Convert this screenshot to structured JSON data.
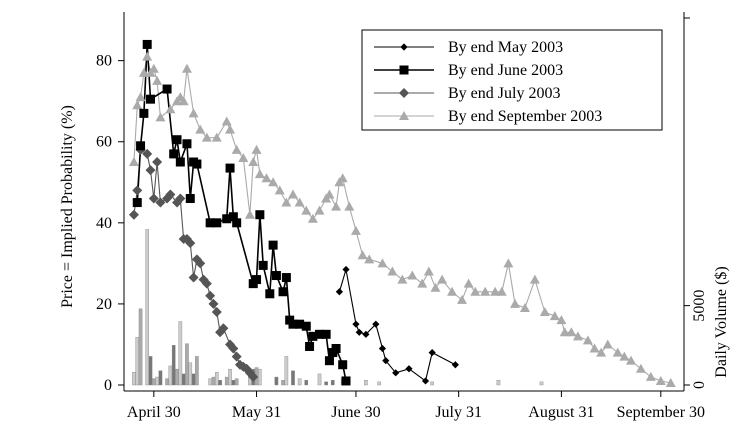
{
  "chart_data": {
    "type": "line",
    "ylabel": "Price = Implied Probability (%)",
    "y2label": "Daily Volume ($)",
    "x_ticks": [
      {
        "date": "2003-04-30",
        "label": "April 30"
      },
      {
        "date": "2003-05-31",
        "label": "May 31"
      },
      {
        "date": "2003-06-30",
        "label": "June 30"
      },
      {
        "date": "2003-07-31",
        "label": "July 31"
      },
      {
        "date": "2003-08-31",
        "label": "August 31"
      },
      {
        "date": "2003-09-30",
        "label": "September 30"
      }
    ],
    "y_ticks": [
      "0",
      "20",
      "40",
      "60",
      "80"
    ],
    "y2_ticks": [
      "0",
      "5000"
    ],
    "ylim": [
      0,
      92
    ],
    "y2lim": [
      0,
      23500
    ],
    "xlim": [
      "2003-04-21",
      "2003-10-07"
    ],
    "legend_position": "top-right",
    "series": [
      {
        "name": "By end May 2003",
        "marker": "diamond-small",
        "color": "#000000",
        "points": [
          [
            "2003-06-25",
            23
          ],
          [
            "2003-06-27",
            28.5
          ],
          [
            "2003-06-30",
            15
          ],
          [
            "2003-07-01",
            13
          ],
          [
            "2003-07-03",
            12.5
          ],
          [
            "2003-07-06",
            15
          ],
          [
            "2003-07-08",
            9
          ],
          [
            "2003-07-09",
            6
          ],
          [
            "2003-07-12",
            3
          ],
          [
            "2003-07-16",
            4
          ],
          [
            "2003-07-21",
            1
          ],
          [
            "2003-07-23",
            8
          ],
          [
            "2003-07-30",
            5
          ]
        ]
      },
      {
        "name": "By end June 2003",
        "marker": "square",
        "color": "#000000",
        "points": [
          [
            "2003-04-25",
            45
          ],
          [
            "2003-04-26",
            59
          ],
          [
            "2003-04-27",
            67
          ],
          [
            "2003-04-28",
            84
          ],
          [
            "2003-04-29",
            70.5
          ],
          [
            "2003-05-04",
            73
          ],
          [
            "2003-05-06",
            57
          ],
          [
            "2003-05-07",
            60.5
          ],
          [
            "2003-05-08",
            55
          ],
          [
            "2003-05-10",
            59.5
          ],
          [
            "2003-05-11",
            46
          ],
          [
            "2003-05-12",
            55
          ],
          [
            "2003-05-13",
            54.5
          ],
          [
            "2003-05-17",
            40
          ],
          [
            "2003-05-19",
            40
          ],
          [
            "2003-05-22",
            41
          ],
          [
            "2003-05-23",
            53.5
          ],
          [
            "2003-05-24",
            41.5
          ],
          [
            "2003-05-25",
            40
          ],
          [
            "2003-05-30",
            25
          ],
          [
            "2003-05-31",
            26
          ],
          [
            "2003-06-01",
            42
          ],
          [
            "2003-06-02",
            29.5
          ],
          [
            "2003-06-04",
            22.5
          ],
          [
            "2003-06-05",
            34.5
          ],
          [
            "2003-06-06",
            27
          ],
          [
            "2003-06-08",
            23
          ],
          [
            "2003-06-09",
            26.5
          ],
          [
            "2003-06-10",
            16
          ],
          [
            "2003-06-11",
            15
          ],
          [
            "2003-06-13",
            15
          ],
          [
            "2003-06-15",
            14.5
          ],
          [
            "2003-06-16",
            9.5
          ],
          [
            "2003-06-17",
            12
          ],
          [
            "2003-06-19",
            12.5
          ],
          [
            "2003-06-21",
            12.5
          ],
          [
            "2003-06-22",
            6
          ],
          [
            "2003-06-23",
            8
          ],
          [
            "2003-06-24",
            9
          ],
          [
            "2003-06-26",
            5
          ],
          [
            "2003-06-27",
            1
          ]
        ]
      },
      {
        "name": "By end July 2003",
        "marker": "diamond",
        "color": "#555555",
        "points": [
          [
            "2003-04-24",
            42
          ],
          [
            "2003-04-25",
            48
          ],
          [
            "2003-04-26",
            58
          ],
          [
            "2003-04-28",
            57
          ],
          [
            "2003-04-29",
            53
          ],
          [
            "2003-04-30",
            46
          ],
          [
            "2003-05-01",
            55
          ],
          [
            "2003-05-02",
            45
          ],
          [
            "2003-05-04",
            46
          ],
          [
            "2003-05-05",
            47
          ],
          [
            "2003-05-07",
            45
          ],
          [
            "2003-05-08",
            46
          ],
          [
            "2003-05-09",
            36
          ],
          [
            "2003-05-10",
            36
          ],
          [
            "2003-05-11",
            35
          ],
          [
            "2003-05-12",
            26.5
          ],
          [
            "2003-05-13",
            31
          ],
          [
            "2003-05-14",
            30
          ],
          [
            "2003-05-15",
            26
          ],
          [
            "2003-05-16",
            25
          ],
          [
            "2003-05-17",
            22
          ],
          [
            "2003-05-18",
            20
          ],
          [
            "2003-05-19",
            18
          ],
          [
            "2003-05-20",
            13
          ],
          [
            "2003-05-21",
            14
          ],
          [
            "2003-05-23",
            10
          ],
          [
            "2003-05-24",
            9
          ],
          [
            "2003-05-25",
            7
          ],
          [
            "2003-05-26",
            5
          ],
          [
            "2003-05-27",
            4.5
          ],
          [
            "2003-05-28",
            4
          ],
          [
            "2003-05-29",
            3
          ],
          [
            "2003-05-30",
            2
          ]
        ]
      },
      {
        "name": "By end September 2003",
        "marker": "triangle",
        "color": "#aaaaaa",
        "points": [
          [
            "2003-04-24",
            55
          ],
          [
            "2003-04-25",
            69
          ],
          [
            "2003-04-26",
            71
          ],
          [
            "2003-04-27",
            77
          ],
          [
            "2003-04-28",
            81
          ],
          [
            "2003-04-29",
            77
          ],
          [
            "2003-04-30",
            78
          ],
          [
            "2003-05-01",
            75
          ],
          [
            "2003-05-02",
            66
          ],
          [
            "2003-05-05",
            68
          ],
          [
            "2003-05-07",
            70
          ],
          [
            "2003-05-08",
            71
          ],
          [
            "2003-05-09",
            70
          ],
          [
            "2003-05-10",
            78
          ],
          [
            "2003-05-12",
            67
          ],
          [
            "2003-05-14",
            63
          ],
          [
            "2003-05-16",
            61
          ],
          [
            "2003-05-19",
            61
          ],
          [
            "2003-05-22",
            65
          ],
          [
            "2003-05-23",
            63
          ],
          [
            "2003-05-25",
            58
          ],
          [
            "2003-05-27",
            56
          ],
          [
            "2003-05-29",
            42
          ],
          [
            "2003-05-30",
            55
          ],
          [
            "2003-05-31",
            58
          ],
          [
            "2003-06-01",
            52
          ],
          [
            "2003-06-03",
            51
          ],
          [
            "2003-06-05",
            50
          ],
          [
            "2003-06-07",
            48
          ],
          [
            "2003-06-09",
            45
          ],
          [
            "2003-06-11",
            47
          ],
          [
            "2003-06-13",
            45
          ],
          [
            "2003-06-15",
            43
          ],
          [
            "2003-06-17",
            41
          ],
          [
            "2003-06-19",
            43
          ],
          [
            "2003-06-21",
            46
          ],
          [
            "2003-06-22",
            47
          ],
          [
            "2003-06-24",
            44
          ],
          [
            "2003-06-25",
            50
          ],
          [
            "2003-06-26",
            51
          ],
          [
            "2003-06-28",
            44
          ],
          [
            "2003-06-30",
            38
          ],
          [
            "2003-07-02",
            32
          ],
          [
            "2003-07-04",
            31
          ],
          [
            "2003-07-08",
            30
          ],
          [
            "2003-07-11",
            28
          ],
          [
            "2003-07-14",
            26
          ],
          [
            "2003-07-17",
            27
          ],
          [
            "2003-07-20",
            25
          ],
          [
            "2003-07-22",
            28
          ],
          [
            "2003-07-24",
            24
          ],
          [
            "2003-07-26",
            26
          ],
          [
            "2003-07-29",
            23
          ],
          [
            "2003-08-01",
            21
          ],
          [
            "2003-08-03",
            25
          ],
          [
            "2003-08-05",
            23
          ],
          [
            "2003-08-08",
            23
          ],
          [
            "2003-08-11",
            23
          ],
          [
            "2003-08-13",
            23
          ],
          [
            "2003-08-15",
            30
          ],
          [
            "2003-08-17",
            20
          ],
          [
            "2003-08-20",
            19
          ],
          [
            "2003-08-23",
            26
          ],
          [
            "2003-08-26",
            18
          ],
          [
            "2003-08-29",
            17
          ],
          [
            "2003-08-31",
            16
          ],
          [
            "2003-09-01",
            13
          ],
          [
            "2003-09-03",
            13
          ],
          [
            "2003-09-05",
            12
          ],
          [
            "2003-09-08",
            11
          ],
          [
            "2003-09-10",
            9
          ],
          [
            "2003-09-12",
            8
          ],
          [
            "2003-09-14",
            10
          ],
          [
            "2003-09-17",
            8
          ],
          [
            "2003-09-19",
            7
          ],
          [
            "2003-09-21",
            6
          ],
          [
            "2003-09-24",
            4
          ],
          [
            "2003-09-27",
            2
          ],
          [
            "2003-09-30",
            1
          ],
          [
            "2003-10-03",
            0.5
          ]
        ]
      }
    ],
    "volume_series": {
      "series_colors": {
        "By end June 2003": "#777777",
        "By end July 2003": "#aaaaaa",
        "By end September 2003": "#cccccc"
      },
      "bars": [
        [
          "2003-04-24",
          800,
          "By end September 2003"
        ],
        [
          "2003-04-25",
          3000,
          "By end September 2003"
        ],
        [
          "2003-04-26",
          4800,
          "By end July 2003"
        ],
        [
          "2003-04-28",
          9800,
          "By end September 2003"
        ],
        [
          "2003-04-29",
          1800,
          "By end June 2003"
        ],
        [
          "2003-04-30",
          400,
          "By end July 2003"
        ],
        [
          "2003-05-01",
          500,
          "By end September 2003"
        ],
        [
          "2003-05-02",
          900,
          "By end June 2003"
        ],
        [
          "2003-05-04",
          400,
          "By end July 2003"
        ],
        [
          "2003-05-05",
          1200,
          "By end September 2003"
        ],
        [
          "2003-05-06",
          2500,
          "By end June 2003"
        ],
        [
          "2003-05-07",
          1000,
          "By end July 2003"
        ],
        [
          "2003-05-08",
          4000,
          "By end September 2003"
        ],
        [
          "2003-05-09",
          700,
          "By end June 2003"
        ],
        [
          "2003-05-10",
          2600,
          "By end July 2003"
        ],
        [
          "2003-05-11",
          1400,
          "By end September 2003"
        ],
        [
          "2003-05-12",
          700,
          "By end June 2003"
        ],
        [
          "2003-05-13",
          1800,
          "By end July 2003"
        ],
        [
          "2003-05-17",
          400,
          "By end September 2003"
        ],
        [
          "2003-05-18",
          500,
          "By end July 2003"
        ],
        [
          "2003-05-19",
          800,
          "By end September 2003"
        ],
        [
          "2003-05-20",
          300,
          "By end June 2003"
        ],
        [
          "2003-05-22",
          500,
          "By end July 2003"
        ],
        [
          "2003-05-23",
          1000,
          "By end September 2003"
        ],
        [
          "2003-05-24",
          300,
          "By end June 2003"
        ],
        [
          "2003-05-25",
          400,
          "By end July 2003"
        ],
        [
          "2003-05-29",
          900,
          "By end September 2003"
        ],
        [
          "2003-05-30",
          1000,
          "By end June 2003"
        ],
        [
          "2003-05-31",
          1100,
          "By end July 2003"
        ],
        [
          "2003-06-01",
          1000,
          "By end September 2003"
        ],
        [
          "2003-06-06",
          500,
          "By end June 2003"
        ],
        [
          "2003-06-08",
          300,
          "By end July 2003"
        ],
        [
          "2003-06-09",
          1800,
          "By end September 2003"
        ],
        [
          "2003-06-11",
          900,
          "By end June 2003"
        ],
        [
          "2003-06-13",
          400,
          "By end September 2003"
        ],
        [
          "2003-06-15",
          300,
          "By end June 2003"
        ],
        [
          "2003-06-19",
          700,
          "By end September 2003"
        ],
        [
          "2003-06-21",
          200,
          "By end June 2003"
        ],
        [
          "2003-06-23",
          300,
          "By end June 2003"
        ],
        [
          "2003-06-26",
          400,
          "By end September 2003"
        ],
        [
          "2003-07-03",
          300,
          "By end September 2003"
        ],
        [
          "2003-07-07",
          200,
          "By end September 2003"
        ],
        [
          "2003-07-23",
          200,
          "By end September 2003"
        ],
        [
          "2003-08-12",
          300,
          "By end September 2003"
        ],
        [
          "2003-08-25",
          200,
          "By end September 2003"
        ]
      ]
    }
  }
}
